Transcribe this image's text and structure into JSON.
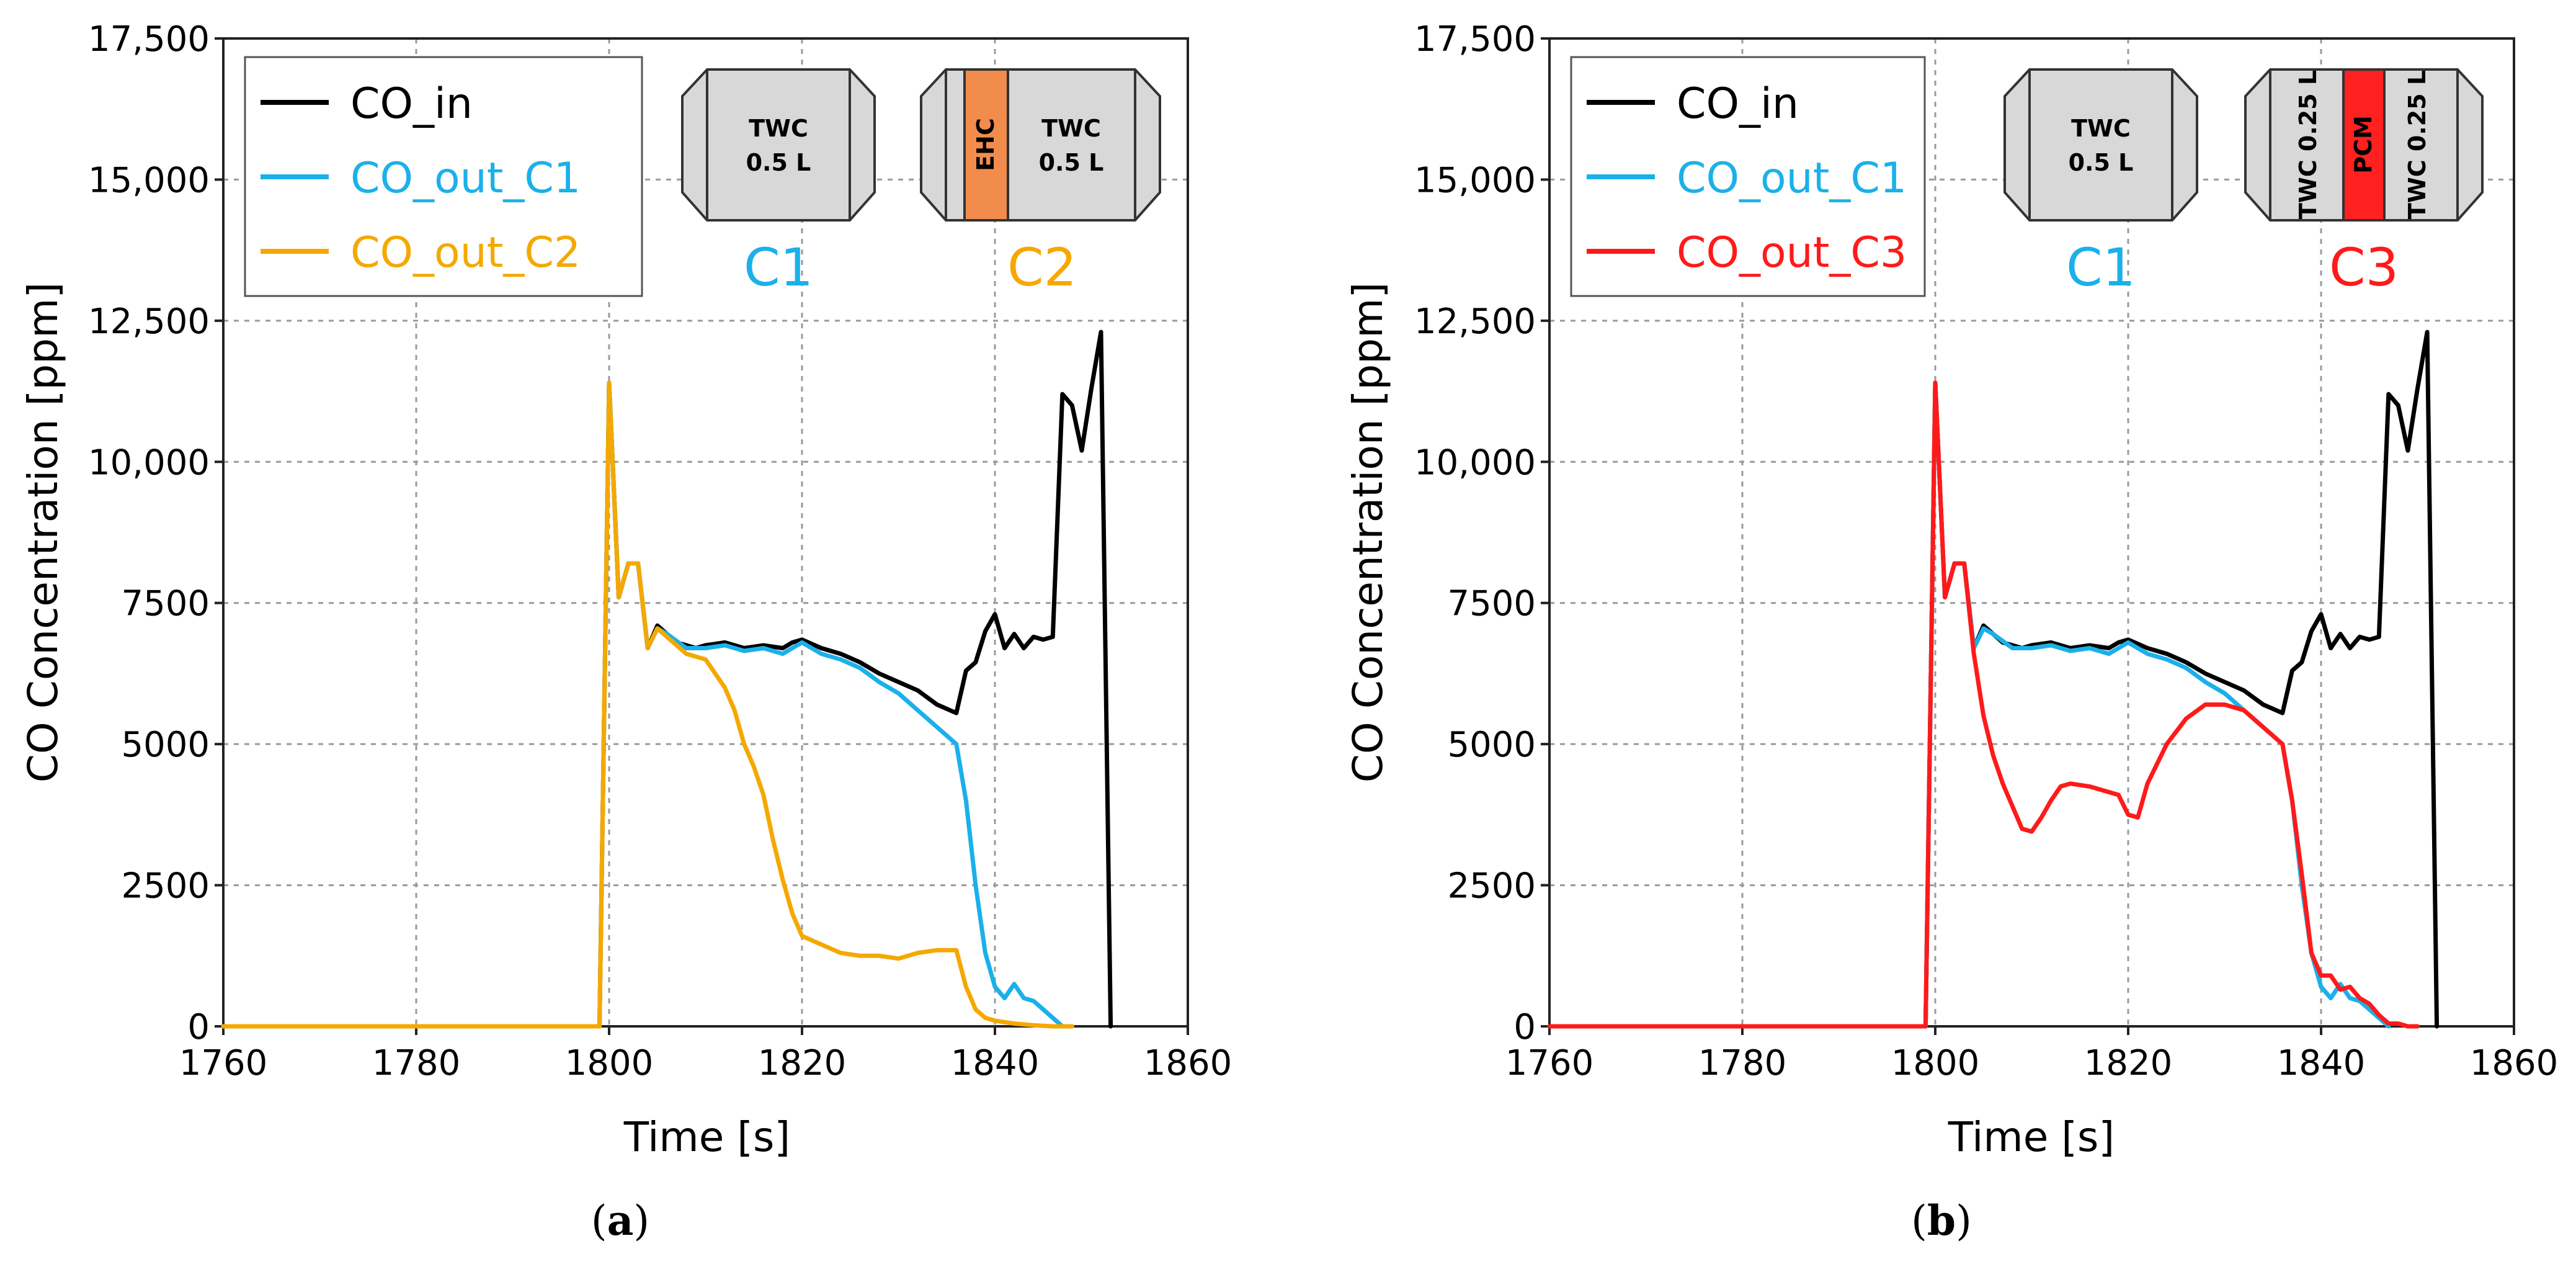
{
  "colors": {
    "co_in": "#000000",
    "c1": "#1BB0EA",
    "c2": "#F5A800",
    "c3": "#FF1A1A",
    "ehc": "#F28C4C",
    "pcm": "#FF2020"
  },
  "chart_data": [
    {
      "type": "line",
      "panel_label": "a",
      "xlabel": "Time [s]",
      "ylabel": "CO Concentration [ppm]",
      "xlim": [
        1760,
        1860
      ],
      "ylim": [
        0,
        17500
      ],
      "xticks": [
        1760,
        1780,
        1800,
        1820,
        1840,
        1860
      ],
      "xtick_labels": [
        "1760",
        "1780",
        "1800",
        "1820",
        "1840",
        "1860"
      ],
      "yticks": [
        0,
        2500,
        5000,
        7500,
        10000,
        12500,
        15000,
        17500
      ],
      "ytick_labels": [
        "0",
        "2500",
        "5000",
        "7500",
        "10,000",
        "12,500",
        "15,000",
        "17,500"
      ],
      "grid": true,
      "legend_position": "top-left",
      "series": [
        {
          "name": "CO_in",
          "color_key": "co_in",
          "x": [
            1760,
            1799,
            1800,
            1801,
            1802,
            1803,
            1804,
            1805,
            1806,
            1807,
            1808,
            1809,
            1810,
            1812,
            1814,
            1816,
            1818,
            1819,
            1820,
            1822,
            1824,
            1826,
            1828,
            1830,
            1832,
            1834,
            1836,
            1837,
            1838,
            1839,
            1840,
            1841,
            1842,
            1843,
            1844,
            1845,
            1846,
            1847,
            1848,
            1849,
            1850,
            1851,
            1852
          ],
          "y": [
            0,
            0,
            11400,
            7600,
            8200,
            8200,
            6700,
            7100,
            6950,
            6800,
            6750,
            6700,
            6750,
            6800,
            6700,
            6750,
            6700,
            6800,
            6850,
            6700,
            6600,
            6450,
            6250,
            6100,
            5950,
            5700,
            5550,
            6300,
            6450,
            7000,
            7300,
            6700,
            6950,
            6700,
            6900,
            6850,
            6900,
            11200,
            11000,
            10200,
            11300,
            12300,
            0
          ]
        },
        {
          "name": "CO_out_C1",
          "color_key": "c1",
          "x": [
            1760,
            1799,
            1800,
            1801,
            1802,
            1803,
            1804,
            1805,
            1806,
            1808,
            1810,
            1812,
            1814,
            1816,
            1818,
            1820,
            1822,
            1824,
            1826,
            1828,
            1830,
            1832,
            1834,
            1836,
            1837,
            1838,
            1839,
            1840,
            1841,
            1842,
            1843,
            1844,
            1845,
            1846,
            1847
          ],
          "y": [
            0,
            0,
            11400,
            7600,
            8200,
            8200,
            6700,
            7050,
            6950,
            6700,
            6700,
            6750,
            6650,
            6700,
            6600,
            6800,
            6600,
            6500,
            6350,
            6100,
            5900,
            5600,
            5300,
            5000,
            4000,
            2500,
            1300,
            700,
            500,
            750,
            500,
            450,
            300,
            150,
            0
          ]
        },
        {
          "name": "CO_out_C2",
          "color_key": "c2",
          "x": [
            1760,
            1799,
            1800,
            1801,
            1802,
            1803,
            1804,
            1805,
            1806,
            1808,
            1810,
            1812,
            1813,
            1814,
            1815,
            1816,
            1817,
            1818,
            1819,
            1820,
            1822,
            1824,
            1826,
            1828,
            1830,
            1832,
            1834,
            1836,
            1837,
            1838,
            1839,
            1840,
            1842,
            1844,
            1846,
            1848
          ],
          "y": [
            0,
            0,
            11400,
            7600,
            8200,
            8200,
            6700,
            7050,
            6900,
            6600,
            6500,
            6000,
            5600,
            5000,
            4600,
            4100,
            3300,
            2600,
            2000,
            1600,
            1450,
            1300,
            1250,
            1250,
            1200,
            1300,
            1350,
            1350,
            700,
            300,
            150,
            100,
            50,
            20,
            0,
            0
          ]
        }
      ]
    },
    {
      "type": "line",
      "panel_label": "b",
      "xlabel": "Time [s]",
      "ylabel": "CO Concentration [ppm]",
      "xlim": [
        1760,
        1860
      ],
      "ylim": [
        0,
        17500
      ],
      "xticks": [
        1760,
        1780,
        1800,
        1820,
        1840,
        1860
      ],
      "xtick_labels": [
        "1760",
        "1780",
        "1800",
        "1820",
        "1840",
        "1860"
      ],
      "yticks": [
        0,
        2500,
        5000,
        7500,
        10000,
        12500,
        15000,
        17500
      ],
      "ytick_labels": [
        "0",
        "2500",
        "5000",
        "7500",
        "10,000",
        "12,500",
        "15,000",
        "17,500"
      ],
      "grid": true,
      "legend_position": "top-left",
      "series": [
        {
          "name": "CO_in",
          "color_key": "co_in",
          "x": [
            1760,
            1799,
            1800,
            1801,
            1802,
            1803,
            1804,
            1805,
            1806,
            1807,
            1808,
            1809,
            1810,
            1812,
            1814,
            1816,
            1818,
            1819,
            1820,
            1822,
            1824,
            1826,
            1828,
            1830,
            1832,
            1834,
            1836,
            1837,
            1838,
            1839,
            1840,
            1841,
            1842,
            1843,
            1844,
            1845,
            1846,
            1847,
            1848,
            1849,
            1850,
            1851,
            1852
          ],
          "y": [
            0,
            0,
            11400,
            7600,
            8200,
            8200,
            6700,
            7100,
            6950,
            6800,
            6750,
            6700,
            6750,
            6800,
            6700,
            6750,
            6700,
            6800,
            6850,
            6700,
            6600,
            6450,
            6250,
            6100,
            5950,
            5700,
            5550,
            6300,
            6450,
            7000,
            7300,
            6700,
            6950,
            6700,
            6900,
            6850,
            6900,
            11200,
            11000,
            10200,
            11300,
            12300,
            0
          ]
        },
        {
          "name": "CO_out_C1",
          "color_key": "c1",
          "x": [
            1760,
            1799,
            1800,
            1801,
            1802,
            1803,
            1804,
            1805,
            1806,
            1808,
            1810,
            1812,
            1814,
            1816,
            1818,
            1820,
            1822,
            1824,
            1826,
            1828,
            1830,
            1832,
            1834,
            1836,
            1837,
            1838,
            1839,
            1840,
            1841,
            1842,
            1843,
            1844,
            1845,
            1846,
            1847
          ],
          "y": [
            0,
            0,
            11400,
            7600,
            8200,
            8200,
            6700,
            7050,
            6950,
            6700,
            6700,
            6750,
            6650,
            6700,
            6600,
            6800,
            6600,
            6500,
            6350,
            6100,
            5900,
            5600,
            5300,
            5000,
            4000,
            2500,
            1300,
            700,
            500,
            750,
            500,
            450,
            300,
            150,
            0
          ]
        },
        {
          "name": "CO_out_C3",
          "color_key": "c3",
          "x": [
            1760,
            1799,
            1800,
            1801,
            1802,
            1803,
            1804,
            1805,
            1806,
            1807,
            1808,
            1809,
            1810,
            1811,
            1812,
            1813,
            1814,
            1816,
            1818,
            1819,
            1820,
            1821,
            1822,
            1824,
            1826,
            1828,
            1830,
            1832,
            1834,
            1836,
            1837,
            1838,
            1839,
            1840,
            1841,
            1842,
            1843,
            1844,
            1845,
            1846,
            1847,
            1848,
            1849,
            1850
          ],
          "y": [
            0,
            0,
            11400,
            7600,
            8200,
            8200,
            6600,
            5500,
            4800,
            4300,
            3900,
            3500,
            3450,
            3700,
            4000,
            4250,
            4300,
            4250,
            4150,
            4100,
            3750,
            3700,
            4300,
            5000,
            5450,
            5700,
            5700,
            5600,
            5300,
            5000,
            4000,
            2700,
            1300,
            900,
            900,
            650,
            700,
            500,
            400,
            200,
            50,
            50,
            0,
            0
          ]
        }
      ]
    }
  ],
  "panels": [
    {
      "legend": [
        "CO_in",
        "CO_out_C1",
        "CO_out_C2"
      ],
      "cat1": {
        "name": "C1",
        "label_top": "TWC",
        "label_bottom": "0.5 L"
      },
      "cat2": {
        "name": "C2",
        "side_label": "EHC",
        "label_top": "TWC",
        "label_bottom": "0.5 L"
      },
      "caption_open": "(",
      "caption_letter": "a",
      "caption_close": ")"
    },
    {
      "legend": [
        "CO_in",
        "CO_out_C1",
        "CO_out_C3"
      ],
      "cat1": {
        "name": "C1",
        "label_top": "TWC",
        "label_bottom": "0.5 L"
      },
      "cat2": {
        "name": "C3",
        "left_label": "TWC 0.25 L",
        "middle_label": "PCM",
        "right_label": "TWC 0.25 L"
      },
      "caption_open": "(",
      "caption_letter": "b",
      "caption_close": ")"
    }
  ]
}
